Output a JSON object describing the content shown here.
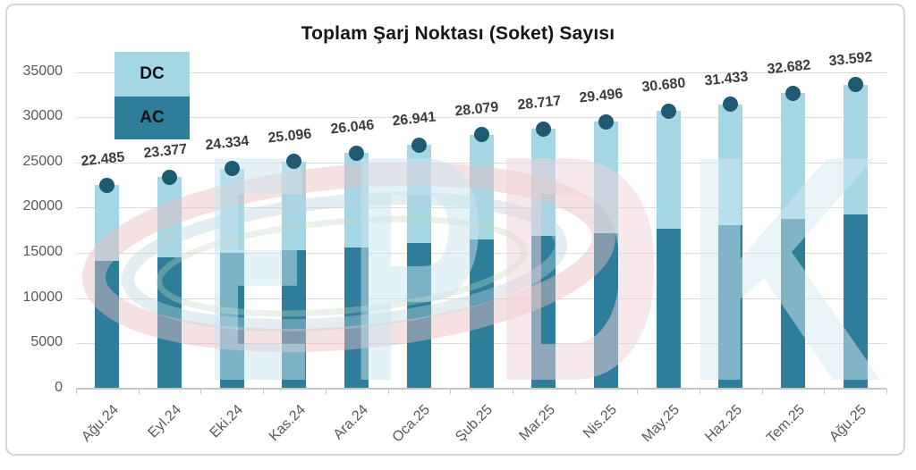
{
  "chart_data": {
    "type": "bar",
    "stacked": true,
    "title": "Toplam Şarj Noktası (Soket) Sayısı",
    "categories": [
      "Ağu.24",
      "Eyl.24",
      "Eki.24",
      "Kas.24",
      "Ara.24",
      "Oca.25",
      "Şub.25",
      "Mar.25",
      "Nis.25",
      "May.25",
      "Haz.25",
      "Tem.25",
      "Ağu.25"
    ],
    "series": [
      {
        "name": "AC",
        "color": "#2e7e9b",
        "values": [
          14100,
          14500,
          15000,
          15300,
          15600,
          16100,
          16500,
          16900,
          17200,
          17700,
          18100,
          18800,
          19250
        ]
      },
      {
        "name": "DC",
        "color": "#a5d6e4",
        "values": [
          8385,
          8877,
          9334,
          9796,
          10446,
          10841,
          11579,
          11817,
          12296,
          12980,
          13333,
          13882,
          14342
        ]
      }
    ],
    "totals": [
      22485,
      23377,
      24334,
      25096,
      26046,
      26941,
      28079,
      28717,
      29496,
      30680,
      31433,
      32682,
      33592
    ],
    "total_labels": [
      "22.485",
      "23.377",
      "24.334",
      "25.096",
      "26.046",
      "26.941",
      "28.079",
      "28.717",
      "29.496",
      "30.680",
      "31.433",
      "32.682",
      "33.592"
    ],
    "total_marker": {
      "shape": "circle",
      "color": "#1e5a72"
    },
    "xlabel": "",
    "ylabel": "",
    "ylim": [
      0,
      35000
    ],
    "yticks": [
      "0",
      "5000",
      "10000",
      "15000",
      "20000",
      "25000",
      "30000",
      "35000"
    ],
    "grid": true,
    "legend_position": "top-left",
    "legend": [
      {
        "label": "DC",
        "color": "#a5d6e4"
      },
      {
        "label": "AC",
        "color": "#2e7e9b"
      }
    ],
    "watermark": {
      "text": "EPDK",
      "letter_colors": [
        "#c9e6ef",
        "#c9e6ef",
        "#eed2d7",
        "#d3eaf1"
      ],
      "swoosh_colors": [
        "#e8bcbf",
        "#b9d3de",
        "#bfd8c0"
      ]
    }
  }
}
